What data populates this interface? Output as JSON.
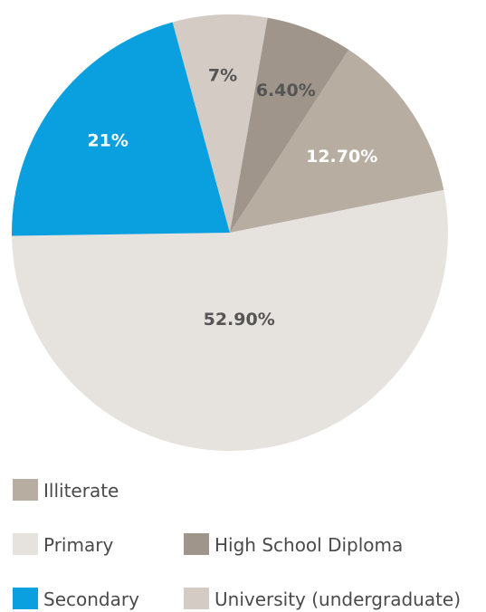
{
  "chart_data": {
    "type": "pie",
    "slices": [
      {
        "label": "Illiterate",
        "value": 12.7,
        "display": "12.70%",
        "color": "#b8ada1",
        "label_color": "#ffffff"
      },
      {
        "label": "Primary",
        "value": 52.9,
        "display": "52.90%",
        "color": "#e6e2de",
        "label_color": "#555555"
      },
      {
        "label": "Secondary",
        "value": 21,
        "display": "21%",
        "color": "#0aa0e0",
        "label_color": "#ffffff"
      },
      {
        "label": "University (undergraduate)",
        "value": 7,
        "display": "7%",
        "color": "#d3cbc4",
        "label_color": "#555555"
      },
      {
        "label": "High School Diploma",
        "value": 6.4,
        "display": "6.40%",
        "color": "#a0958a",
        "label_color": "#555555"
      }
    ],
    "legend": {
      "placement": "bottom",
      "order": [
        "Illiterate",
        "Primary",
        "High School Diploma",
        "Secondary",
        "University (undergraduate)"
      ]
    }
  }
}
